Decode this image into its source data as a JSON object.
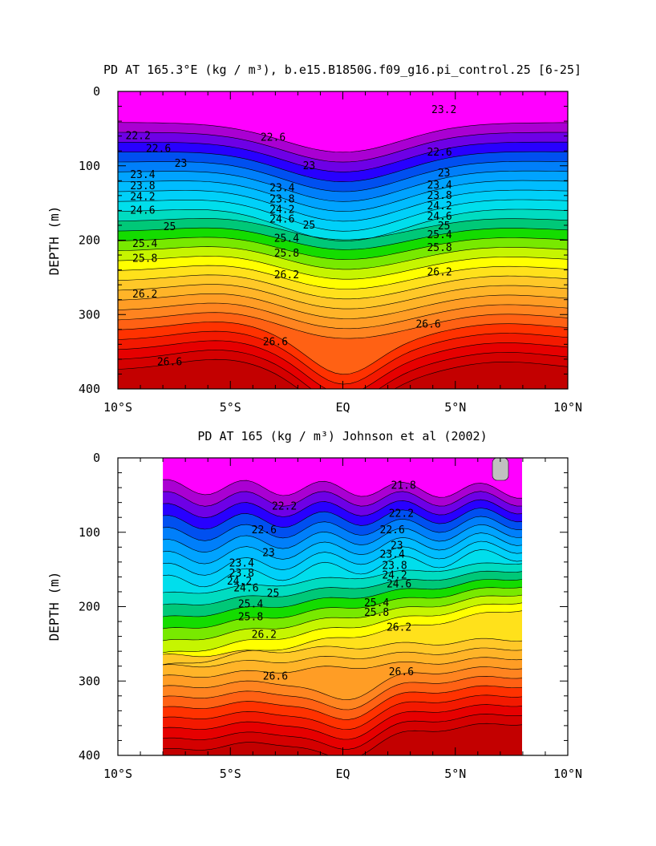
{
  "chart_data": [
    {
      "type": "heatmap",
      "title": "PD AT 165.3°E (kg / m³), b.e15.B1850G.f09_g16.pi_control.25 [6-25]",
      "ylabel": "DEPTH (m)",
      "xlabel": "",
      "xlim": [
        -10,
        10
      ],
      "ylim": [
        400,
        0
      ],
      "y_inverted": true,
      "x_ticks": [
        -10,
        -5,
        0,
        5,
        10
      ],
      "x_tick_labels": [
        "10°S",
        "5°S",
        "EQ",
        "5°N",
        "10°N"
      ],
      "y_ticks": [
        0,
        100,
        200,
        300,
        400
      ],
      "y_tick_labels": [
        "0",
        "100",
        "200",
        "300",
        "400"
      ],
      "data_extent": [
        -10,
        10
      ],
      "contour_levels": [
        21.8,
        22.0,
        22.2,
        22.4,
        22.6,
        22.8,
        23.0,
        23.2,
        23.4,
        23.6,
        23.8,
        24.0,
        24.2,
        24.4,
        24.6,
        24.8,
        25.0,
        25.2,
        25.4,
        25.6,
        25.8,
        26.0,
        26.2,
        26.4,
        26.6,
        26.8
      ],
      "contour_labels": [
        {
          "text": "22.2",
          "x": -9.1,
          "y": 60
        },
        {
          "text": "22.6",
          "x": -8.2,
          "y": 77
        },
        {
          "text": "23",
          "x": -7.2,
          "y": 97
        },
        {
          "text": "23.4",
          "x": -8.9,
          "y": 112
        },
        {
          "text": "23.8",
          "x": -8.9,
          "y": 127
        },
        {
          "text": "24.2",
          "x": -8.9,
          "y": 142
        },
        {
          "text": "24.6",
          "x": -8.9,
          "y": 160
        },
        {
          "text": "25",
          "x": -7.7,
          "y": 182
        },
        {
          "text": "25.4",
          "x": -8.8,
          "y": 205
        },
        {
          "text": "25.8",
          "x": -8.8,
          "y": 225
        },
        {
          "text": "26.2",
          "x": -8.8,
          "y": 273
        },
        {
          "text": "26.6",
          "x": -7.7,
          "y": 364
        },
        {
          "text": "23.4",
          "x": -2.7,
          "y": 130
        },
        {
          "text": "23.8",
          "x": -2.7,
          "y": 145
        },
        {
          "text": "24.2",
          "x": -2.7,
          "y": 159
        },
        {
          "text": "24.6",
          "x": -2.7,
          "y": 172
        },
        {
          "text": "25",
          "x": -1.5,
          "y": 180
        },
        {
          "text": "25.4",
          "x": -2.5,
          "y": 198
        },
        {
          "text": "25.8",
          "x": -2.5,
          "y": 218
        },
        {
          "text": "26.2",
          "x": -2.5,
          "y": 247
        },
        {
          "text": "26.6",
          "x": -3.0,
          "y": 337
        },
        {
          "text": "22.6",
          "x": -3.1,
          "y": 62
        },
        {
          "text": "23",
          "x": -1.5,
          "y": 100
        },
        {
          "text": "23.2",
          "x": 4.5,
          "y": 25
        },
        {
          "text": "22.6",
          "x": 4.3,
          "y": 82
        },
        {
          "text": "23",
          "x": 4.5,
          "y": 110
        },
        {
          "text": "23.4",
          "x": 4.3,
          "y": 126
        },
        {
          "text": "23.8",
          "x": 4.3,
          "y": 140
        },
        {
          "text": "24.2",
          "x": 4.3,
          "y": 154
        },
        {
          "text": "24.6",
          "x": 4.3,
          "y": 168
        },
        {
          "text": "25",
          "x": 4.5,
          "y": 181
        },
        {
          "text": "25.4",
          "x": 4.3,
          "y": 193
        },
        {
          "text": "25.8",
          "x": 4.3,
          "y": 210
        },
        {
          "text": "26.2",
          "x": 4.3,
          "y": 243
        },
        {
          "text": "26.6",
          "x": 3.8,
          "y": 313
        }
      ]
    },
    {
      "type": "heatmap",
      "title": "PD AT 165 (kg / m³) Johnson et al (2002)",
      "ylabel": "DEPTH (m)",
      "xlabel": "",
      "xlim": [
        -10,
        10
      ],
      "ylim": [
        400,
        0
      ],
      "y_inverted": true,
      "x_ticks": [
        -10,
        -5,
        0,
        5,
        10
      ],
      "x_tick_labels": [
        "10°S",
        "5°S",
        "EQ",
        "5°N",
        "10°N"
      ],
      "y_ticks": [
        0,
        100,
        200,
        300,
        400
      ],
      "y_tick_labels": [
        "0",
        "100",
        "200",
        "300",
        "400"
      ],
      "data_extent": [
        -8,
        8
      ],
      "contour_levels": [
        21.8,
        22.0,
        22.2,
        22.4,
        22.6,
        22.8,
        23.0,
        23.2,
        23.4,
        23.6,
        23.8,
        24.0,
        24.2,
        24.4,
        24.6,
        24.8,
        25.0,
        25.2,
        25.4,
        25.6,
        25.8,
        26.0,
        26.2,
        26.4,
        26.6,
        26.8
      ],
      "contour_labels": [
        {
          "text": "21.8",
          "x": 2.7,
          "y": 37
        },
        {
          "text": "22.2",
          "x": -2.6,
          "y": 65
        },
        {
          "text": "22.2",
          "x": 2.6,
          "y": 75
        },
        {
          "text": "22.6",
          "x": -3.5,
          "y": 97
        },
        {
          "text": "22.6",
          "x": 2.2,
          "y": 97
        },
        {
          "text": "23",
          "x": -3.3,
          "y": 128
        },
        {
          "text": "23",
          "x": 2.4,
          "y": 118
        },
        {
          "text": "23.4",
          "x": -4.5,
          "y": 142
        },
        {
          "text": "23.4",
          "x": 2.2,
          "y": 130
        },
        {
          "text": "23.8",
          "x": -4.5,
          "y": 155
        },
        {
          "text": "23.8",
          "x": 2.3,
          "y": 145
        },
        {
          "text": "24.2",
          "x": -4.6,
          "y": 166
        },
        {
          "text": "24.2",
          "x": 2.3,
          "y": 158
        },
        {
          "text": "24.6",
          "x": -4.3,
          "y": 175
        },
        {
          "text": "24.6",
          "x": 2.5,
          "y": 170
        },
        {
          "text": "25",
          "x": -3.1,
          "y": 182
        },
        {
          "text": "25.4",
          "x": -4.1,
          "y": 197
        },
        {
          "text": "25.4",
          "x": 1.5,
          "y": 195
        },
        {
          "text": "25.8",
          "x": -4.1,
          "y": 214
        },
        {
          "text": "25.8",
          "x": 1.5,
          "y": 208
        },
        {
          "text": "26.2",
          "x": -3.5,
          "y": 238
        },
        {
          "text": "26.2",
          "x": 2.5,
          "y": 228
        },
        {
          "text": "26.6",
          "x": -3.0,
          "y": 294
        },
        {
          "text": "26.6",
          "x": 2.6,
          "y": 288
        }
      ]
    }
  ]
}
